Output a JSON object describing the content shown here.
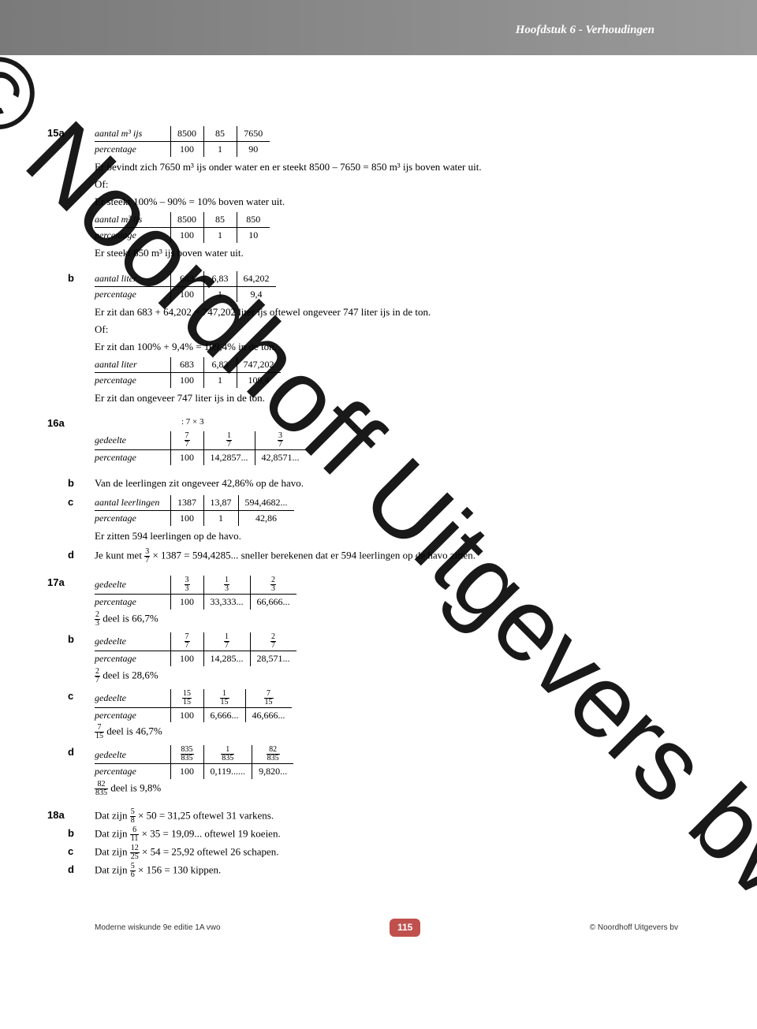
{
  "header": {
    "chapter_title": "Hoofdstuk 6 - Verhoudingen"
  },
  "watermark": "© Noordhoff Uitgevers bv",
  "footer": {
    "left": "Moderne wiskunde 9e editie 1A vwo",
    "right": "© Noordhoff Uitgevers bv",
    "page": "115",
    "page_bg": "#c0504d"
  },
  "ex15a": {
    "num": "15a",
    "t1_rows": [
      [
        "aantal m³ ijs",
        "8500",
        "85",
        "7650"
      ],
      [
        "percentage",
        "100",
        "1",
        "90"
      ]
    ],
    "line1": "Er bevindt zich 7650 m³ ijs onder water en er steekt 8500 – 7650 = 850 m³ ijs boven water uit.",
    "of": "Of:",
    "line2": "Er steekt 100% – 90% = 10% boven water uit.",
    "t2_rows": [
      [
        "aantal m³ ijs",
        "8500",
        "85",
        "850"
      ],
      [
        "percentage",
        "100",
        "1",
        "10"
      ]
    ],
    "line3": "Er steekt 850 m³ ijs boven water uit."
  },
  "ex15b": {
    "label": "b",
    "t1_rows": [
      [
        "aantal liter",
        "683",
        "6,83",
        "64,202"
      ],
      [
        "percentage",
        "100",
        "1",
        "9,4"
      ]
    ],
    "line1": "Er zit dan 683 + 64,202 = 747,202 liter ijs oftewel ongeveer 747 liter ijs in de ton.",
    "of": "Of:",
    "line2": "Er zit dan 100% + 9,4% = 109,4% in de ton.",
    "t2_rows": [
      [
        "aantal liter",
        "683",
        "6,83",
        "747,202"
      ],
      [
        "percentage",
        "100",
        "1",
        "109,4"
      ]
    ],
    "line3": "Er zit dan ongeveer 747 liter ijs in de ton."
  },
  "ex16a": {
    "num": "16a",
    "ops": ": 7        × 3",
    "row_label1": "gedeelte",
    "fracs": [
      [
        "7",
        "7"
      ],
      [
        "1",
        "7"
      ],
      [
        "3",
        "7"
      ]
    ],
    "row_label2": "percentage",
    "percs": [
      "100",
      "14,2857...",
      "42,8571..."
    ]
  },
  "ex16b": {
    "label": "b",
    "text": "Van de leerlingen zit ongeveer 42,86% op de havo."
  },
  "ex16c": {
    "label": "c",
    "rows": [
      [
        "aantal leerlingen",
        "1387",
        "13,87",
        "594,4682..."
      ],
      [
        "percentage",
        "100",
        "1",
        "42,86"
      ]
    ],
    "line": "Er zitten 594 leerlingen op de havo."
  },
  "ex16d": {
    "label": "d",
    "pre": "Je kunt met ",
    "frac": [
      "3",
      "7"
    ],
    "mid": " × 1387 = 594,4285... sneller berekenen dat er 594 leerlingen op de havo zitten."
  },
  "ex17": {
    "num": "17a",
    "items": [
      {
        "label": "",
        "rh": "gedeelte",
        "fracs": [
          [
            "3",
            "3"
          ],
          [
            "1",
            "3"
          ],
          [
            "2",
            "3"
          ]
        ],
        "prh": "percentage",
        "percs": [
          "100",
          "33,333...",
          "66,666..."
        ],
        "ans_frac": [
          "2",
          "3"
        ],
        "ans": " deel is 66,7%"
      },
      {
        "label": "b",
        "rh": "gedeelte",
        "fracs": [
          [
            "7",
            "7"
          ],
          [
            "1",
            "7"
          ],
          [
            "2",
            "7"
          ]
        ],
        "prh": "percentage",
        "percs": [
          "100",
          "14,285...",
          "28,571..."
        ],
        "ans_frac": [
          "2",
          "7"
        ],
        "ans": " deel is 28,6%"
      },
      {
        "label": "c",
        "rh": "gedeelte",
        "fracs": [
          [
            "15",
            "15"
          ],
          [
            "1",
            "15"
          ],
          [
            "7",
            "15"
          ]
        ],
        "prh": "percentage",
        "percs": [
          "100",
          "6,666...",
          "46,666..."
        ],
        "ans_frac": [
          "7",
          "15"
        ],
        "ans": " deel is 46,7%"
      },
      {
        "label": "d",
        "rh": "gedeelte",
        "fracs": [
          [
            "835",
            "835"
          ],
          [
            "1",
            "835"
          ],
          [
            "82",
            "835"
          ]
        ],
        "prh": "percentage",
        "percs": [
          "100",
          "0,119......",
          "9,820..."
        ],
        "ans_frac": [
          "82",
          "835"
        ],
        "ans": " deel is 9,8%"
      }
    ]
  },
  "ex18": {
    "num": "18a",
    "items": [
      {
        "label": "",
        "pre": "Dat zijn ",
        "frac": [
          "5",
          "8"
        ],
        "post": " × 50 = 31,25 oftewel 31 varkens."
      },
      {
        "label": "b",
        "pre": "Dat zijn ",
        "frac": [
          "6",
          "11"
        ],
        "post": " × 35 = 19,09... oftewel 19 koeien."
      },
      {
        "label": "c",
        "pre": "Dat zijn ",
        "frac": [
          "12",
          "25"
        ],
        "post": " × 54 = 25,92 oftewel 26 schapen."
      },
      {
        "label": "d",
        "pre": "Dat zijn ",
        "frac": [
          "5",
          "6"
        ],
        "post": " × 156 = 130 kippen."
      }
    ]
  }
}
